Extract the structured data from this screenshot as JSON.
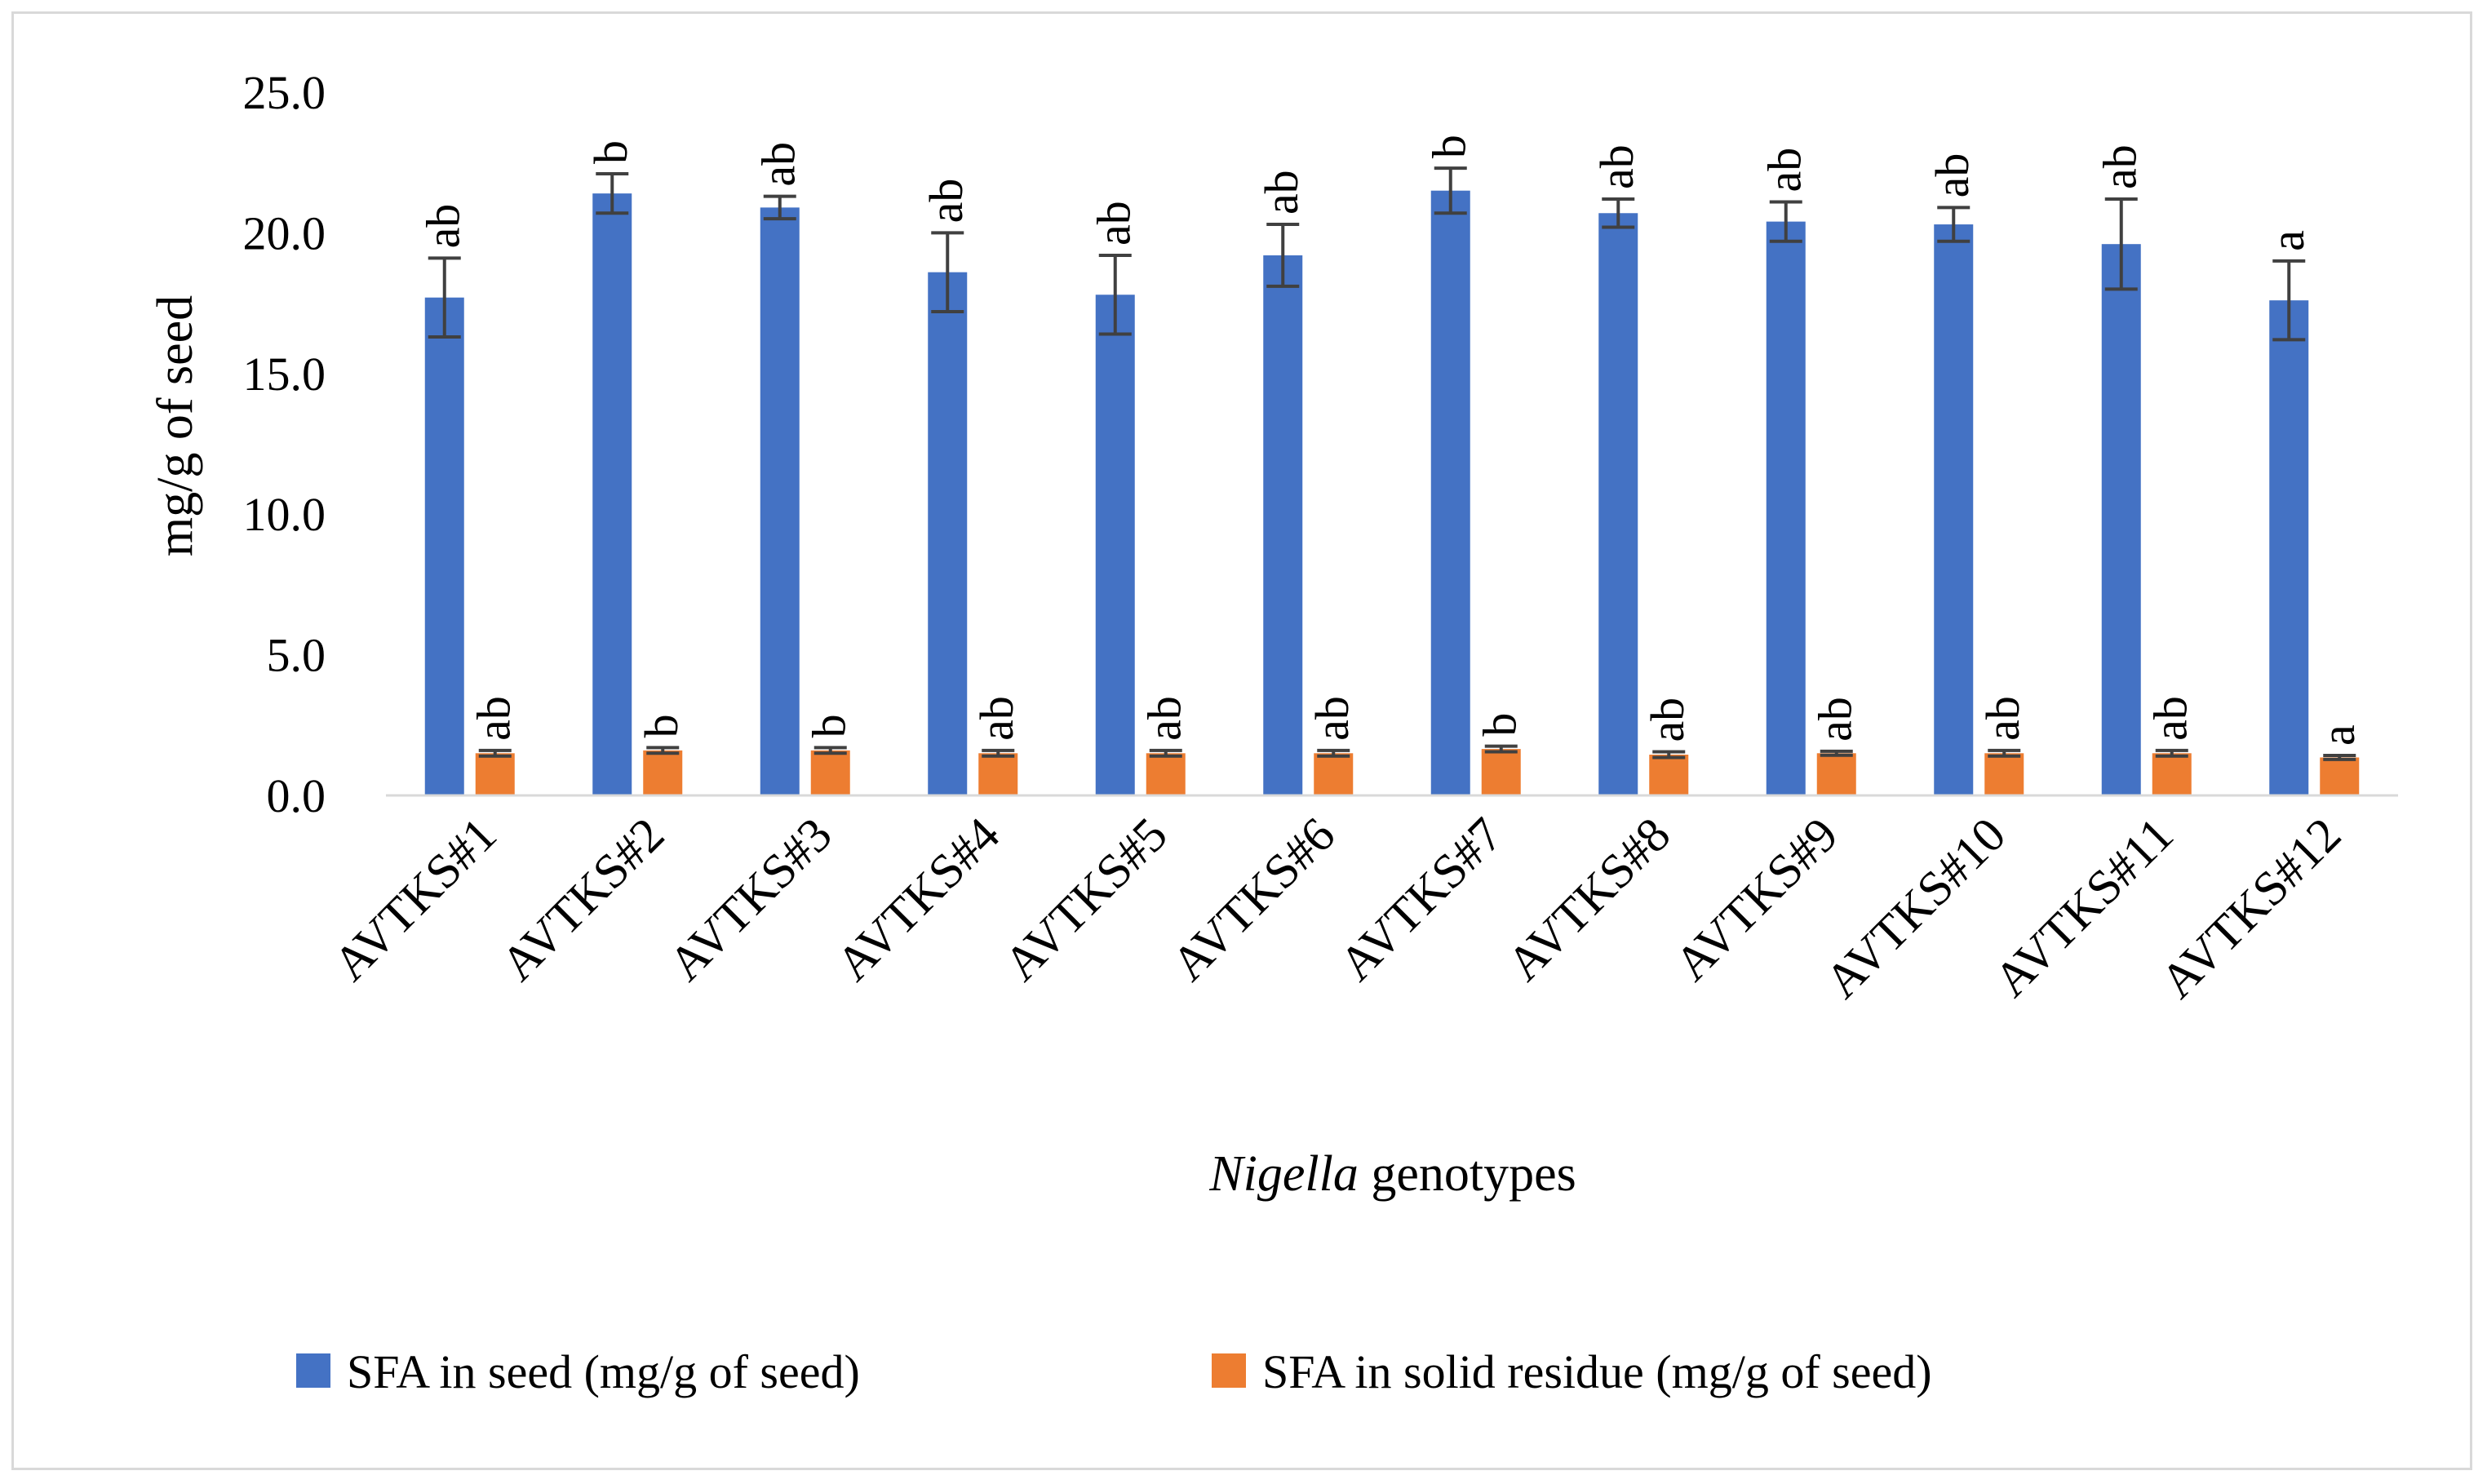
{
  "chart_data": {
    "type": "bar",
    "xlabel": {
      "italic": "Nigella",
      "rest": " genotypes"
    },
    "ylabel": "mg/g of seed",
    "ylim": [
      0,
      25
    ],
    "yticks": [
      "0.0",
      "5.0",
      "10.0",
      "15.0",
      "20.0",
      "25.0"
    ],
    "grid": false,
    "legend_position": "bottom",
    "categories": [
      "AVTKS#1",
      "AVTKS#2",
      "AVTKS#3",
      "AVTKS#4",
      "AVTKS#5",
      "AVTKS#6",
      "AVTKS#7",
      "AVTKS#8",
      "AVTKS#9",
      "AVTKS#10",
      "AVTKS#11",
      "AVTKS#12"
    ],
    "series": [
      {
        "name": "SFA in seed (mg/g of seed)",
        "color": "#4472c4",
        "values": [
          17.7,
          21.4,
          20.9,
          18.6,
          17.8,
          19.2,
          21.5,
          20.7,
          20.4,
          20.3,
          19.6,
          17.6
        ],
        "errors": [
          1.4,
          0.7,
          0.4,
          1.4,
          1.4,
          1.1,
          0.8,
          0.5,
          0.7,
          0.6,
          1.6,
          1.4
        ],
        "letters": [
          "ab",
          "b",
          "ab",
          "ab",
          "ab",
          "ab",
          "b",
          "ab",
          "ab",
          "ab",
          "ab",
          "a"
        ]
      },
      {
        "name": "SFA in solid residue (mg/g of seed)",
        "color": "#ed7d31",
        "values": [
          1.5,
          1.6,
          1.6,
          1.5,
          1.5,
          1.5,
          1.65,
          1.45,
          1.5,
          1.5,
          1.5,
          1.35
        ],
        "errors": [
          0.1,
          0.1,
          0.1,
          0.1,
          0.1,
          0.1,
          0.1,
          0.1,
          0.07,
          0.1,
          0.1,
          0.07
        ],
        "letters": [
          "ab",
          "b",
          "b",
          "ab",
          "ab",
          "ab",
          "b",
          "ab",
          "ab",
          "ab",
          "ab",
          "a"
        ]
      }
    ]
  }
}
